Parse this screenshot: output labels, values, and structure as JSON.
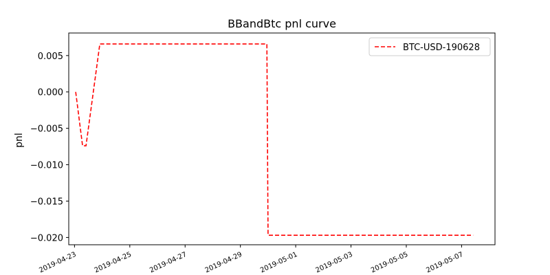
{
  "chart_data": {
    "type": "line",
    "title": "BBandBtc pnl curve",
    "xlabel": "",
    "ylabel": "pnl",
    "x_axis_type": "date",
    "xlim": [
      "2019-04-22T19:00",
      "2019-05-08T05:00"
    ],
    "ylim": [
      -0.021,
      0.0081
    ],
    "yticks": [
      0.005,
      0.0,
      -0.005,
      -0.01,
      -0.015,
      -0.02
    ],
    "ytick_labels": [
      "0.005",
      "0.000",
      "−0.005",
      "−0.010",
      "−0.015",
      "−0.020"
    ],
    "xticks": [
      "2019-04-23",
      "2019-04-25",
      "2019-04-27",
      "2019-04-29",
      "2019-05-01",
      "2019-05-03",
      "2019-05-05",
      "2019-05-07"
    ],
    "xtick_labels": [
      "2019-04-23",
      "2019-04-25",
      "2019-04-27",
      "2019-04-29",
      "2019-05-01",
      "2019-05-03",
      "2019-05-05",
      "2019-05-07"
    ],
    "grid": false,
    "legend_position": "top-right",
    "series": [
      {
        "name": "BTC-USD-190628",
        "color": "#ff0000",
        "line_style": "dashed",
        "x": [
          "2019-04-23T01:00",
          "2019-04-23T07:00",
          "2019-04-23T10:00",
          "2019-04-23T22:00",
          "2019-04-29T23:00",
          "2019-04-30T00:00",
          "2019-05-07T10:00"
        ],
        "y": [
          0.0,
          -0.0074,
          -0.0074,
          0.0066,
          0.0066,
          -0.0197,
          -0.0197
        ]
      }
    ]
  }
}
